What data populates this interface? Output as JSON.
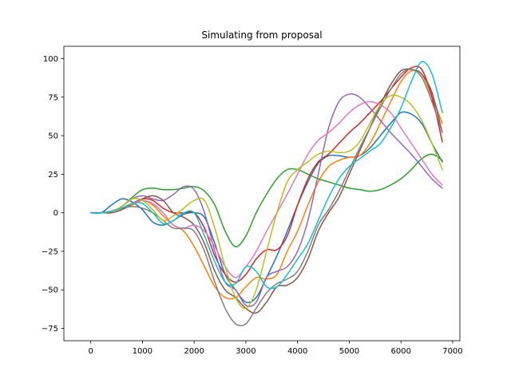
{
  "chart_data": {
    "type": "line",
    "title": "Simulating from proposal",
    "xlabel": "",
    "ylabel": "",
    "xlim": [
      -520,
      7140
    ],
    "ylim": [
      -83,
      108
    ],
    "xticks": [
      0,
      1000,
      2000,
      3000,
      4000,
      5000,
      6000,
      7000
    ],
    "yticks": [
      -75,
      -50,
      -25,
      0,
      25,
      50,
      75,
      100
    ],
    "grid": false,
    "legend": "none",
    "series": [
      {
        "color": "#1f77b4",
        "x": [
          0,
          200,
          400,
          600,
          800,
          1000,
          1200,
          1400,
          1600,
          1800,
          2000,
          2200,
          2400,
          2600,
          2800,
          3000,
          3200,
          3400,
          3600,
          3800,
          4000,
          4200,
          4400,
          4600,
          4800,
          5000,
          5200,
          5400,
          5600,
          5800,
          6000,
          6200,
          6400,
          6600,
          6800
        ],
        "y": [
          0,
          0,
          5,
          9,
          7,
          2,
          -6,
          -8,
          -5,
          -1,
          0,
          -3,
          -20,
          -40,
          -50,
          -58,
          -55,
          -42,
          -28,
          -12,
          5,
          20,
          32,
          37,
          37,
          36,
          37,
          42,
          50,
          58,
          65,
          64,
          58,
          45,
          33
        ]
      },
      {
        "color": "#ff7f0e",
        "x": [
          0,
          200,
          400,
          600,
          800,
          1000,
          1200,
          1400,
          1600,
          1800,
          2000,
          2200,
          2400,
          2600,
          2800,
          3000,
          3200,
          3400,
          3600,
          3800,
          4000,
          4200,
          4400,
          4600,
          4800,
          5000,
          5200,
          5400,
          5600,
          5800,
          6000,
          6200,
          6400,
          6600,
          6800
        ],
        "y": [
          0,
          0,
          0,
          2,
          5,
          8,
          5,
          -2,
          -8,
          -12,
          -22,
          -35,
          -48,
          -55,
          -55,
          -48,
          -42,
          -43,
          -40,
          -25,
          -12,
          5,
          20,
          30,
          34,
          36,
          37,
          45,
          58,
          72,
          85,
          92,
          90,
          75,
          58
        ]
      },
      {
        "color": "#2ca02c",
        "x": [
          0,
          200,
          400,
          600,
          800,
          1000,
          1200,
          1400,
          1600,
          1800,
          2000,
          2200,
          2400,
          2600,
          2800,
          3000,
          3200,
          3400,
          3600,
          3800,
          4000,
          4200,
          4400,
          4600,
          4800,
          5000,
          5200,
          5400,
          5600,
          5800,
          6000,
          6200,
          6400,
          6600,
          6800
        ],
        "y": [
          0,
          0,
          1,
          4,
          10,
          15,
          16,
          15,
          15,
          16,
          17,
          14,
          5,
          -12,
          -22,
          -15,
          0,
          12,
          22,
          28,
          28,
          25,
          22,
          20,
          18,
          16,
          15,
          14,
          15,
          18,
          22,
          28,
          35,
          38,
          34
        ]
      },
      {
        "color": "#d62728",
        "x": [
          0,
          200,
          400,
          600,
          800,
          1000,
          1200,
          1400,
          1600,
          1800,
          2000,
          2200,
          2400,
          2600,
          2800,
          3000,
          3200,
          3400,
          3600,
          3800,
          4000,
          4200,
          4400,
          4600,
          4800,
          5000,
          5200,
          5400,
          5600,
          5800,
          6000,
          6200,
          6400,
          6600,
          6800
        ],
        "y": [
          0,
          0,
          1,
          3,
          6,
          9,
          8,
          3,
          0,
          0,
          0,
          -10,
          -28,
          -40,
          -45,
          -40,
          -30,
          -24,
          -24,
          -15,
          5,
          22,
          33,
          38,
          45,
          52,
          58,
          65,
          72,
          80,
          88,
          94,
          93,
          75,
          46
        ]
      },
      {
        "color": "#9467bd",
        "x": [
          0,
          200,
          400,
          600,
          800,
          1000,
          1200,
          1400,
          1600,
          1800,
          2000,
          2200,
          2400,
          2600,
          2800,
          3000,
          3200,
          3400,
          3600,
          3800,
          4000,
          4200,
          4400,
          4600,
          4800,
          5000,
          5200,
          5400,
          5600,
          5800,
          6000,
          6200,
          6400,
          6600,
          6800
        ],
        "y": [
          0,
          0,
          1,
          4,
          9,
          11,
          9,
          8,
          12,
          17,
          15,
          0,
          -25,
          -45,
          -50,
          -60,
          -58,
          -42,
          -38,
          -35,
          -25,
          -5,
          25,
          55,
          72,
          77,
          75,
          68,
          60,
          52,
          45,
          38,
          30,
          22,
          16
        ]
      },
      {
        "color": "#8c564b",
        "x": [
          0,
          200,
          400,
          600,
          800,
          1000,
          1200,
          1400,
          1600,
          1800,
          2000,
          2200,
          2400,
          2600,
          2800,
          3000,
          3200,
          3400,
          3600,
          3800,
          4000,
          4200,
          4400,
          4600,
          4800,
          5000,
          5200,
          5400,
          5600,
          5800,
          6000,
          6200,
          6400,
          6600,
          6800
        ],
        "y": [
          0,
          0,
          0,
          2,
          6,
          9,
          11,
          8,
          0,
          -3,
          -8,
          -20,
          -38,
          -50,
          -55,
          -62,
          -65,
          -58,
          -48,
          -47,
          -42,
          -30,
          -12,
          0,
          10,
          25,
          40,
          55,
          70,
          83,
          92,
          93,
          90,
          78,
          52
        ]
      },
      {
        "color": "#e377c2",
        "x": [
          0,
          200,
          400,
          600,
          800,
          1000,
          1200,
          1400,
          1600,
          1800,
          2000,
          2200,
          2400,
          2600,
          2800,
          3000,
          3200,
          3400,
          3600,
          3800,
          4000,
          4200,
          4400,
          4600,
          4800,
          5000,
          5200,
          5400,
          5600,
          5800,
          6000,
          6200,
          6400,
          6600,
          6800
        ],
        "y": [
          0,
          0,
          1,
          3,
          6,
          8,
          6,
          0,
          -8,
          -10,
          -8,
          -12,
          -22,
          -35,
          -42,
          -35,
          -25,
          -12,
          0,
          12,
          25,
          38,
          47,
          52,
          58,
          65,
          70,
          72,
          70,
          65,
          55,
          45,
          35,
          25,
          18
        ]
      },
      {
        "color": "#7f7f7f",
        "x": [
          0,
          200,
          400,
          600,
          800,
          1000,
          1200,
          1400,
          1600,
          1800,
          2000,
          2200,
          2400,
          2600,
          2800,
          3000,
          3200,
          3400,
          3600,
          3800,
          4000,
          4200,
          4400,
          4600,
          4800,
          5000,
          5200,
          5400,
          5600,
          5800,
          6000,
          6200,
          6400,
          6600,
          6800
        ],
        "y": [
          0,
          0,
          1,
          3,
          4,
          3,
          0,
          -5,
          -10,
          -10,
          -12,
          -25,
          -45,
          -62,
          -72,
          -72,
          -62,
          -52,
          -46,
          -43,
          -38,
          -25,
          -8,
          2,
          14,
          28,
          42,
          55,
          68,
          80,
          90,
          93,
          88,
          72,
          52
        ]
      },
      {
        "color": "#bcbd22",
        "x": [
          0,
          200,
          400,
          600,
          800,
          1000,
          1200,
          1400,
          1600,
          1800,
          2000,
          2200,
          2400,
          2600,
          2800,
          3000,
          3200,
          3400,
          3600,
          3800,
          4000,
          4200,
          4400,
          4600,
          4800,
          5000,
          5200,
          5400,
          5600,
          5800,
          6000,
          6200,
          6400,
          6600,
          6800
        ],
        "y": [
          0,
          0,
          1,
          4,
          9,
          8,
          2,
          -5,
          -2,
          3,
          8,
          8,
          -10,
          -35,
          -55,
          -62,
          -50,
          -25,
          0,
          20,
          28,
          33,
          38,
          40,
          39,
          40,
          46,
          58,
          70,
          76,
          75,
          70,
          60,
          45,
          28
        ]
      },
      {
        "color": "#17becf",
        "x": [
          0,
          200,
          400,
          600,
          800,
          1000,
          1200,
          1400,
          1600,
          1800,
          2000,
          2200,
          2400,
          2600,
          2800,
          3000,
          3200,
          3400,
          3600,
          3800,
          4000,
          4200,
          4400,
          4600,
          4800,
          5000,
          5200,
          5400,
          5600,
          5800,
          6000,
          6200,
          6400,
          6600,
          6800
        ],
        "y": [
          0,
          0,
          1,
          3,
          6,
          6,
          0,
          -7,
          -5,
          0,
          0,
          -15,
          -32,
          -45,
          -46,
          -35,
          -38,
          -48,
          -48,
          -40,
          -30,
          -20,
          -5,
          10,
          22,
          30,
          35,
          40,
          45,
          55,
          68,
          85,
          98,
          90,
          65
        ]
      }
    ]
  }
}
